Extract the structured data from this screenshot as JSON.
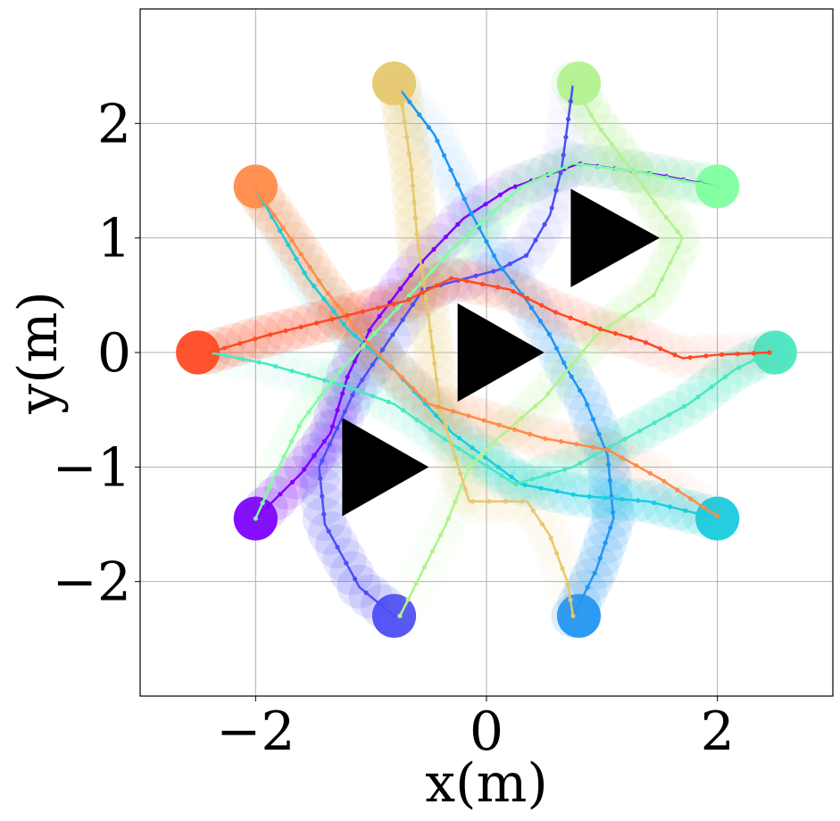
{
  "chart_data": {
    "type": "scatter",
    "xlabel": "x(m)",
    "ylabel": "y(m)",
    "xlim": [
      -3,
      3
    ],
    "ylim": [
      -3,
      3
    ],
    "grid": true,
    "x_ticks": [
      {
        "value": -2,
        "label": "−2"
      },
      {
        "value": 0,
        "label": "0"
      },
      {
        "value": 2,
        "label": "2"
      }
    ],
    "y_ticks": [
      {
        "value": -2,
        "label": "−2"
      },
      {
        "value": -1,
        "label": "−1"
      },
      {
        "value": 0,
        "label": "0"
      },
      {
        "value": 1,
        "label": "1"
      },
      {
        "value": 2,
        "label": "2"
      }
    ],
    "obstacles": [
      {
        "shape": "triangle",
        "points": [
          [
            0.73,
            1.43
          ],
          [
            1.5,
            1.0
          ],
          [
            0.73,
            0.57
          ]
        ],
        "color": "#000000"
      },
      {
        "shape": "triangle",
        "points": [
          [
            -0.25,
            0.43
          ],
          [
            0.5,
            0.0
          ],
          [
            -0.25,
            -0.43
          ]
        ],
        "color": "#000000"
      },
      {
        "shape": "triangle",
        "points": [
          [
            -1.25,
            -0.57
          ],
          [
            -0.5,
            -1.0
          ],
          [
            -1.25,
            -1.43
          ]
        ],
        "color": "#000000"
      }
    ],
    "series": [
      {
        "color": "#8000ff",
        "start": [
          -2.0,
          -1.45
        ],
        "points": [
          [
            -2.0,
            -1.45
          ],
          [
            -1.6,
            -1.05
          ],
          [
            -1.35,
            -0.7
          ],
          [
            -1.2,
            -0.2
          ],
          [
            -1.0,
            0.22
          ],
          [
            -0.6,
            0.75
          ],
          [
            -0.2,
            1.17
          ],
          [
            0.2,
            1.43
          ],
          [
            0.8,
            1.65
          ],
          [
            1.5,
            1.55
          ],
          [
            2.0,
            1.45
          ]
        ]
      },
      {
        "color": "#4e4ef5",
        "start": [
          -0.8,
          -2.3
        ],
        "points": [
          [
            -0.8,
            -2.3
          ],
          [
            -1.1,
            -2.05
          ],
          [
            -1.4,
            -1.5
          ],
          [
            -1.45,
            -1.0
          ],
          [
            -1.15,
            -0.35
          ],
          [
            -0.55,
            0.55
          ],
          [
            0.1,
            0.72
          ],
          [
            0.35,
            0.85
          ],
          [
            0.55,
            1.2
          ],
          [
            0.65,
            1.6
          ],
          [
            0.75,
            2.35
          ]
        ]
      },
      {
        "color": "#2196f3",
        "start": [
          0.8,
          -2.3
        ],
        "points": [
          [
            0.75,
            -2.3
          ],
          [
            0.95,
            -1.9
          ],
          [
            1.1,
            -1.45
          ],
          [
            1.05,
            -0.9
          ],
          [
            0.85,
            -0.4
          ],
          [
            0.7,
            -0.15
          ],
          [
            0.55,
            0.15
          ],
          [
            0.35,
            0.45
          ],
          [
            0.1,
            0.78
          ],
          [
            -0.15,
            1.25
          ],
          [
            -0.45,
            1.9
          ],
          [
            -0.75,
            2.3
          ]
        ]
      },
      {
        "color": "#18cde3",
        "start": [
          2.0,
          -1.45
        ],
        "points": [
          [
            2.0,
            -1.45
          ],
          [
            1.4,
            -1.3
          ],
          [
            0.8,
            -1.25
          ],
          [
            0.3,
            -1.15
          ],
          [
            -0.3,
            -0.7
          ],
          [
            -0.8,
            -0.15
          ],
          [
            -1.2,
            0.2
          ],
          [
            -1.55,
            0.65
          ],
          [
            -2.0,
            1.43
          ]
        ]
      },
      {
        "color": "#4ae8c2",
        "start": [
          2.5,
          0.0
        ],
        "points": [
          [
            2.45,
            0.0
          ],
          [
            2.15,
            -0.15
          ],
          [
            1.75,
            -0.45
          ],
          [
            1.3,
            -0.7
          ],
          [
            0.75,
            -1.0
          ],
          [
            0.25,
            -1.15
          ],
          [
            -0.3,
            -0.8
          ],
          [
            -0.8,
            -0.45
          ],
          [
            -1.2,
            -0.3
          ],
          [
            -1.9,
            -0.1
          ],
          [
            -2.4,
            0.0
          ]
        ]
      },
      {
        "color": "#80ff9f",
        "start": [
          2.0,
          1.45
        ],
        "points": [
          [
            2.0,
            1.45
          ],
          [
            1.7,
            1.5
          ],
          [
            1.3,
            1.58
          ],
          [
            0.75,
            1.65
          ],
          [
            0.3,
            1.45
          ],
          [
            -0.3,
            0.9
          ],
          [
            -0.85,
            0.3
          ],
          [
            -1.3,
            -0.2
          ],
          [
            -1.6,
            -0.6
          ],
          [
            -1.8,
            -1.0
          ],
          [
            -2.0,
            -1.45
          ]
        ]
      },
      {
        "color": "#b3f290",
        "start": [
          0.8,
          2.35
        ],
        "points": [
          [
            0.75,
            2.35
          ],
          [
            0.95,
            2.0
          ],
          [
            1.25,
            1.6
          ],
          [
            1.5,
            1.25
          ],
          [
            1.7,
            1.0
          ],
          [
            1.45,
            0.5
          ],
          [
            0.95,
            0.15
          ],
          [
            0.5,
            -0.4
          ],
          [
            0.1,
            -0.75
          ],
          [
            -0.15,
            -1.0
          ],
          [
            -0.35,
            -1.5
          ],
          [
            -0.6,
            -2.0
          ],
          [
            -0.75,
            -2.3
          ]
        ]
      },
      {
        "color": "#e6c86e",
        "start": [
          -0.8,
          2.35
        ],
        "points": [
          [
            -0.75,
            2.3
          ],
          [
            -0.65,
            1.6
          ],
          [
            -0.6,
            1.0
          ],
          [
            -0.5,
            0.3
          ],
          [
            -0.4,
            -0.5
          ],
          [
            -0.15,
            -1.3
          ],
          [
            0.35,
            -1.3
          ],
          [
            0.55,
            -1.6
          ],
          [
            0.7,
            -2.0
          ],
          [
            0.75,
            -2.3
          ]
        ]
      },
      {
        "color": "#ff8c4a",
        "start": [
          -2.0,
          1.45
        ],
        "points": [
          [
            -2.0,
            1.43
          ],
          [
            -1.7,
            1.0
          ],
          [
            -1.4,
            0.55
          ],
          [
            -1.0,
            0.05
          ],
          [
            -0.5,
            -0.45
          ],
          [
            0.0,
            -0.6
          ],
          [
            0.5,
            -0.75
          ],
          [
            1.05,
            -0.85
          ],
          [
            1.5,
            -1.1
          ],
          [
            2.0,
            -1.43
          ]
        ]
      },
      {
        "color": "#ff4a24",
        "start": [
          -2.5,
          0.0
        ],
        "points": [
          [
            -2.4,
            0.0
          ],
          [
            -1.9,
            0.15
          ],
          [
            -1.3,
            0.3
          ],
          [
            -0.7,
            0.45
          ],
          [
            -0.3,
            0.65
          ],
          [
            0.2,
            0.55
          ],
          [
            0.6,
            0.35
          ],
          [
            1.0,
            0.2
          ],
          [
            1.35,
            0.1
          ],
          [
            1.7,
            -0.05
          ],
          [
            2.0,
            -0.02
          ],
          [
            2.45,
            0.0
          ]
        ]
      }
    ]
  }
}
